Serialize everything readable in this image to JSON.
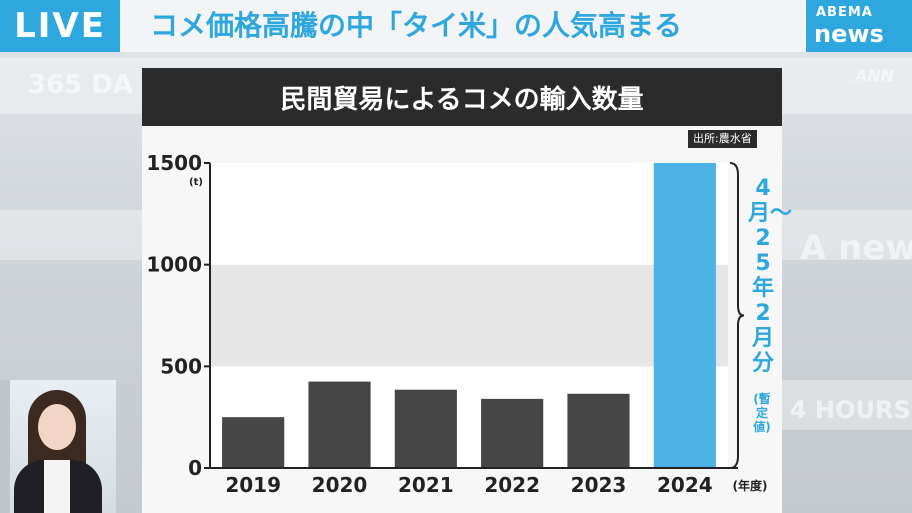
{
  "broadcast": {
    "live_label": "LIVE",
    "headline": "コメ価格高騰の中「タイ米」の人気高まる",
    "logo_line1": "ABEMA",
    "logo_line2": "news",
    "background_text": [
      "365 DA",
      "ANN",
      "A news",
      "4 HOURS"
    ]
  },
  "chart": {
    "source": "出所:農水省",
    "note_main": "4月〜25年2月分",
    "note_sub": "(暫定値)"
  },
  "colors": {
    "accent": "#2ea7de",
    "bar_default": "#464646",
    "bar_highlight": "#4db3e6",
    "title_bg": "#2b2b2b"
  },
  "chart_data": {
    "type": "bar",
    "title": "民間貿易によるコメの輸入数量",
    "categories": [
      "2019",
      "2020",
      "2021",
      "2022",
      "2023",
      "2024"
    ],
    "values": [
      250,
      425,
      385,
      340,
      365,
      1500
    ],
    "highlight_index": 5,
    "ylabel": "(t)",
    "xlabel": "(年度)",
    "ylim": [
      0,
      1500
    ],
    "yticks": [
      0,
      500,
      1000,
      1500
    ],
    "grid": "alternating horizontal bands"
  }
}
